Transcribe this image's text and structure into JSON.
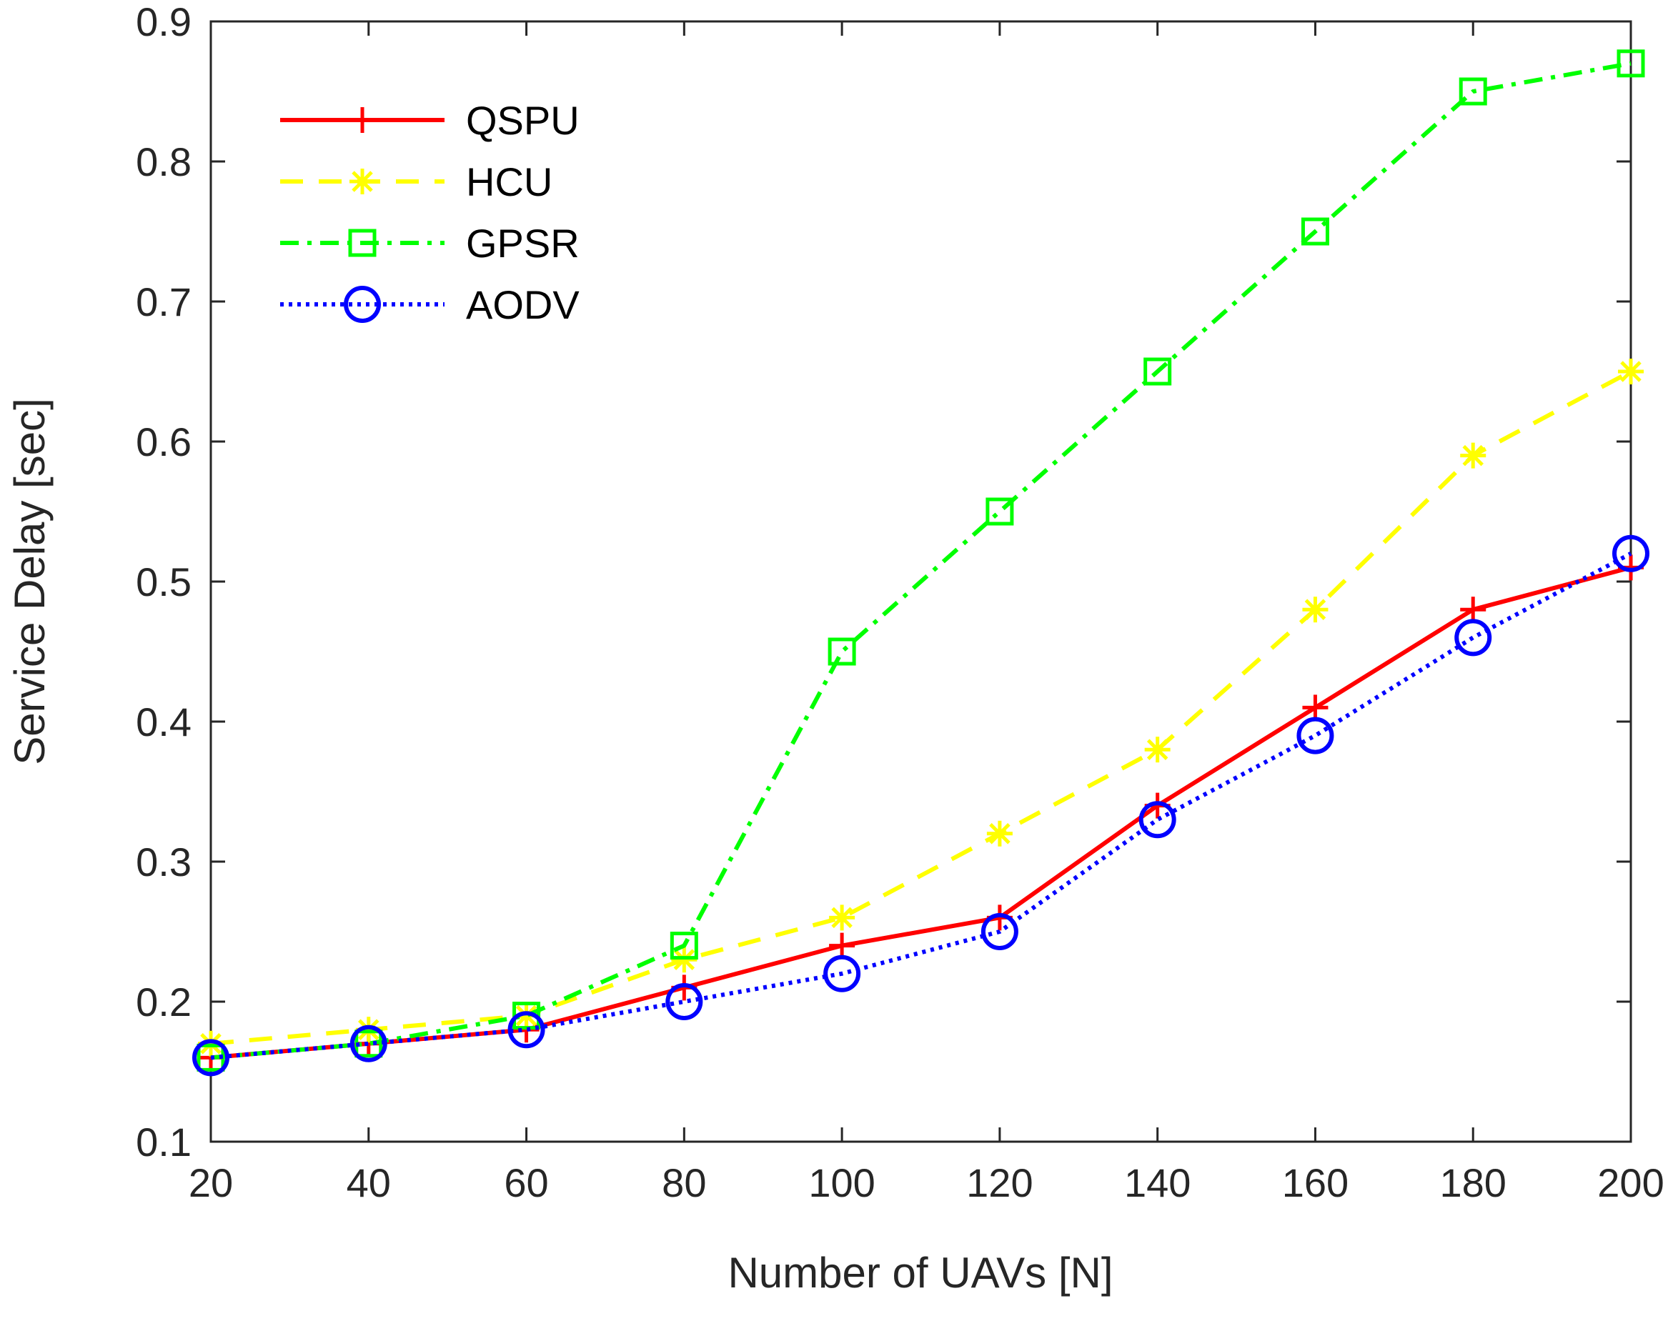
{
  "chart_data": {
    "type": "line",
    "title": "",
    "xlabel": "Number of UAVs [N]",
    "ylabel": "Service Delay [sec]",
    "x": [
      20,
      40,
      60,
      80,
      100,
      120,
      140,
      160,
      180,
      200
    ],
    "xlim": [
      20,
      200
    ],
    "ylim": [
      0.1,
      0.9
    ],
    "xticks": [
      20,
      40,
      60,
      80,
      100,
      120,
      140,
      160,
      180,
      200
    ],
    "xtick_labels": [
      "20",
      "40",
      "60",
      "80",
      "100",
      "120",
      "140",
      "160",
      "180",
      "200"
    ],
    "yticks": [
      0.1,
      0.2,
      0.3,
      0.4,
      0.5,
      0.6,
      0.7,
      0.8,
      0.9
    ],
    "ytick_labels": [
      "0.1",
      "0.2",
      "0.3",
      "0.4",
      "0.5",
      "0.6",
      "0.7",
      "0.8",
      "0.9"
    ],
    "grid": false,
    "legend_position": "top-left",
    "series": [
      {
        "name": "QSPU",
        "color": "#ff0000",
        "line_style": "solid",
        "marker": "plus",
        "values": [
          0.16,
          0.17,
          0.18,
          0.21,
          0.24,
          0.26,
          0.34,
          0.41,
          0.48,
          0.51
        ]
      },
      {
        "name": "HCU",
        "color": "#ffff00",
        "line_style": "dashed",
        "marker": "asterisk",
        "values": [
          0.17,
          0.18,
          0.19,
          0.23,
          0.26,
          0.32,
          0.38,
          0.48,
          0.59,
          0.65
        ]
      },
      {
        "name": "GPSR",
        "color": "#00ff00",
        "line_style": "dashdot",
        "marker": "square",
        "values": [
          0.16,
          0.17,
          0.19,
          0.24,
          0.45,
          0.55,
          0.65,
          0.75,
          0.85,
          0.87
        ]
      },
      {
        "name": "AODV",
        "color": "#0000ff",
        "line_style": "dotted",
        "marker": "circle",
        "values": [
          0.16,
          0.17,
          0.18,
          0.2,
          0.22,
          0.25,
          0.33,
          0.39,
          0.46,
          0.52
        ]
      }
    ]
  }
}
